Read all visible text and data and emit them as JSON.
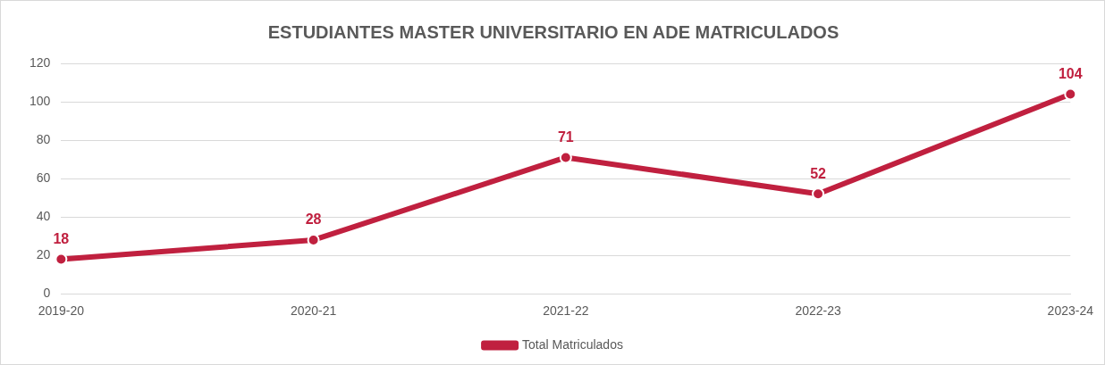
{
  "chart_data": {
    "type": "line",
    "title": "ESTUDIANTES MASTER UNIVERSITARIO EN ADE MATRICULADOS",
    "categories": [
      "2019-20",
      "2020-21",
      "2021-22",
      "2022-23",
      "2023-24"
    ],
    "series": [
      {
        "name": "Total Matriculados",
        "color": "#c0203f",
        "values": [
          18,
          28,
          71,
          52,
          104
        ]
      }
    ],
    "ylim": [
      0,
      120
    ],
    "yticks": [
      0,
      20,
      40,
      60,
      80,
      100,
      120
    ],
    "grid": "y",
    "legend": "bottom",
    "data_labels": true,
    "marker": "circle",
    "line_style": "solid"
  }
}
